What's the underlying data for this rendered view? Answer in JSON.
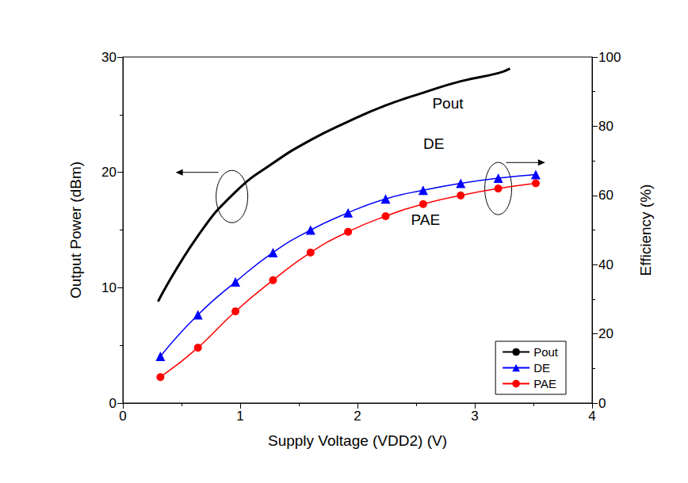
{
  "chart_data": {
    "type": "line",
    "xlabel": "Supply Voltage (VDD2) (V)",
    "ylabel": "Output Power (dBm)",
    "y2label": "Efficiency (%)",
    "xlim": [
      0,
      4
    ],
    "xticks": [
      0,
      1,
      2,
      3,
      4
    ],
    "ylim": [
      0,
      30
    ],
    "yticks": [
      0,
      10,
      20,
      30
    ],
    "y2lim": [
      0,
      100
    ],
    "y2ticks": [
      0,
      20,
      40,
      60,
      80,
      100
    ],
    "grid": false,
    "legend": "lower right",
    "annotations": [
      "Pout",
      "DE",
      "PAE"
    ],
    "series": [
      {
        "name": "Pout",
        "color": "#000000",
        "marker": "none",
        "line_style": "solid",
        "x": [
          0.3,
          0.64,
          0.96,
          1.28,
          1.6,
          1.92,
          2.24,
          2.56,
          2.88,
          3.2,
          3.3
        ],
        "values": [
          8.8,
          14.5,
          18.3,
          20.8,
          22.8,
          24.4,
          25.8,
          26.9,
          27.9,
          28.6,
          29.0
        ]
      },
      {
        "name": "DE",
        "color": "#0000ff",
        "marker": "triangle",
        "line_style": "solid",
        "axis": "y2",
        "x": [
          0.32,
          0.64,
          0.96,
          1.28,
          1.6,
          1.92,
          2.24,
          2.56,
          2.88,
          3.2,
          3.52
        ],
        "values": [
          13.5,
          25.5,
          35,
          43.5,
          50,
          55,
          59,
          61.5,
          63.5,
          65,
          66
        ]
      },
      {
        "name": "PAE",
        "color": "#ff0000",
        "marker": "circle",
        "line_style": "solid",
        "axis": "y2",
        "x": [
          0.32,
          0.64,
          0.96,
          1.28,
          1.6,
          1.92,
          2.24,
          2.56,
          2.88,
          3.2,
          3.52
        ],
        "values": [
          7.5,
          16,
          26.5,
          35.5,
          43.5,
          49.5,
          54,
          57.5,
          60,
          62,
          63.5
        ]
      }
    ]
  }
}
